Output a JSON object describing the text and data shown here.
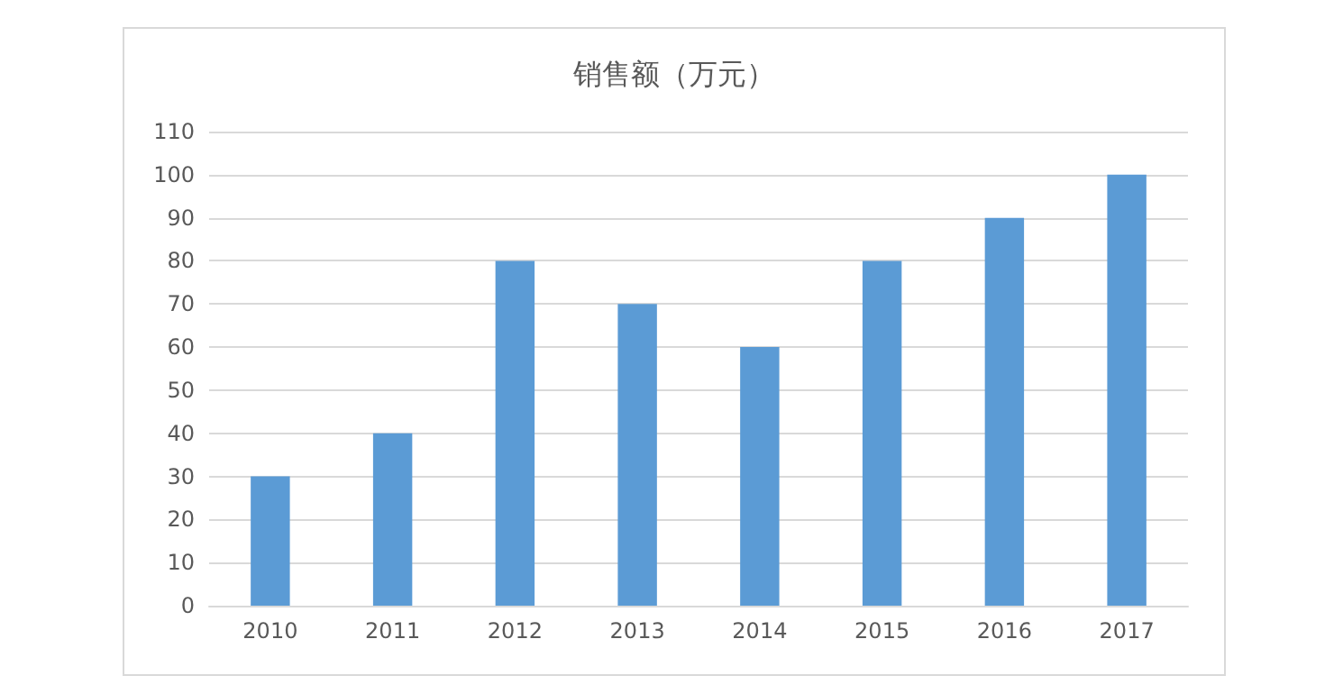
{
  "chart_data": {
    "type": "bar",
    "title": "销售额（万元）",
    "categories": [
      "2010",
      "2011",
      "2012",
      "2013",
      "2014",
      "2015",
      "2016",
      "2017"
    ],
    "values": [
      30,
      40,
      80,
      70,
      60,
      80,
      90,
      100
    ],
    "color": "#5b9bd5",
    "ylim": [
      0,
      110
    ],
    "yticks": [
      0,
      10,
      20,
      30,
      40,
      50,
      60,
      70,
      80,
      90,
      100,
      110
    ],
    "grid": "y"
  }
}
